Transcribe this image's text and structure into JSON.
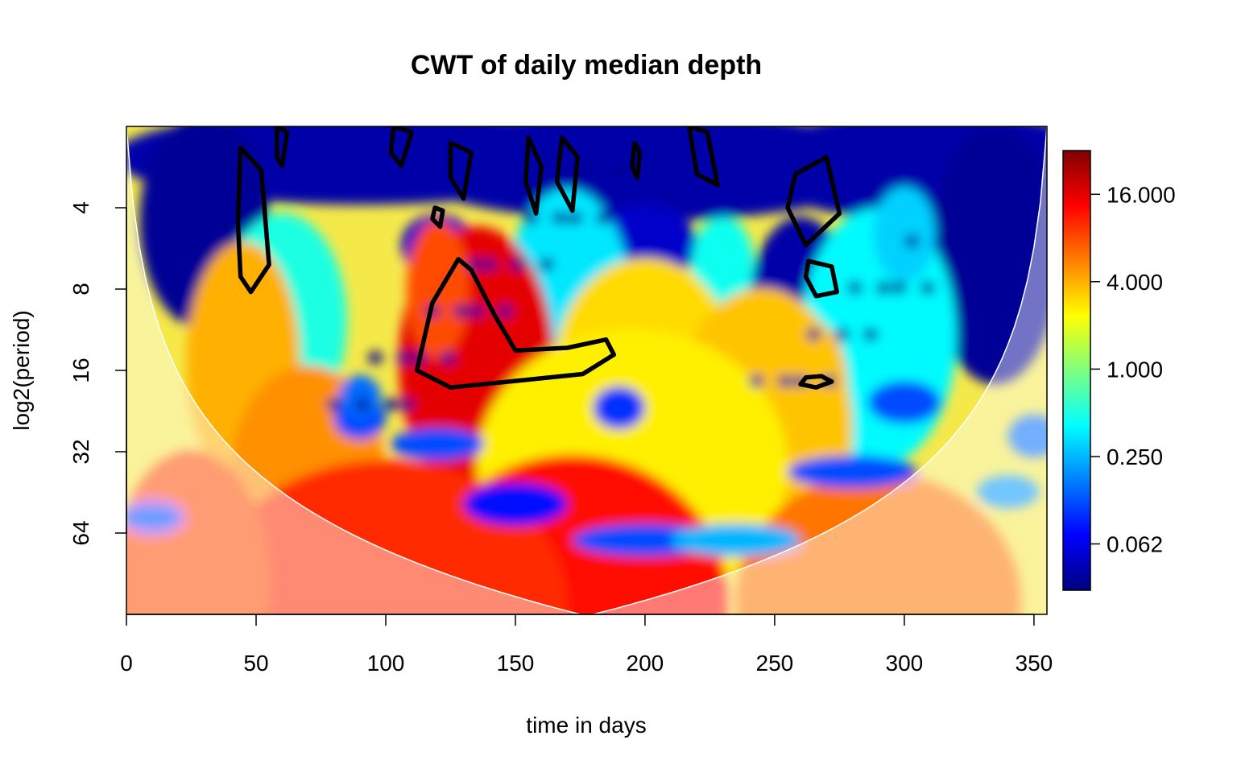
{
  "chart_data": {
    "type": "heatmap",
    "title": "CWT of daily median depth",
    "xlabel": "time in days",
    "ylabel": "log2(period)",
    "xlim": [
      0,
      355
    ],
    "ylim_period": [
      2,
      128
    ],
    "y_scale": "log2",
    "y_reversed": true,
    "x_ticks": [
      "0",
      "50",
      "100",
      "150",
      "200",
      "250",
      "300",
      "350"
    ],
    "x_tick_values": [
      0,
      50,
      100,
      150,
      200,
      250,
      300,
      350
    ],
    "y_ticks": [
      "4",
      "8",
      "16",
      "32",
      "64"
    ],
    "y_tick_values": [
      4,
      8,
      16,
      32,
      64
    ],
    "colorbar": {
      "scale": "log",
      "labels": [
        "16.000",
        "4.000",
        "1.000",
        "0.250",
        "0.062"
      ],
      "values": [
        16,
        4,
        1,
        0.25,
        0.0625
      ],
      "range": [
        0.03,
        32
      ],
      "palette": [
        "#00007F",
        "#0000FF",
        "#007FFF",
        "#00FFFF",
        "#7FFF7F",
        "#FFFF00",
        "#FF7F00",
        "#FF0000",
        "#7F0000"
      ]
    },
    "cone_of_influence": true,
    "significance_contours": true,
    "dominant_features": [
      {
        "time": 135,
        "period": 15,
        "power": 16
      },
      {
        "time": 172,
        "period": 115,
        "power": 12
      },
      {
        "time": 70,
        "period": 40,
        "power": 5
      },
      {
        "time": 45,
        "period": 15,
        "power": 4
      },
      {
        "time": 260,
        "period": 18,
        "power": 4
      }
    ]
  }
}
